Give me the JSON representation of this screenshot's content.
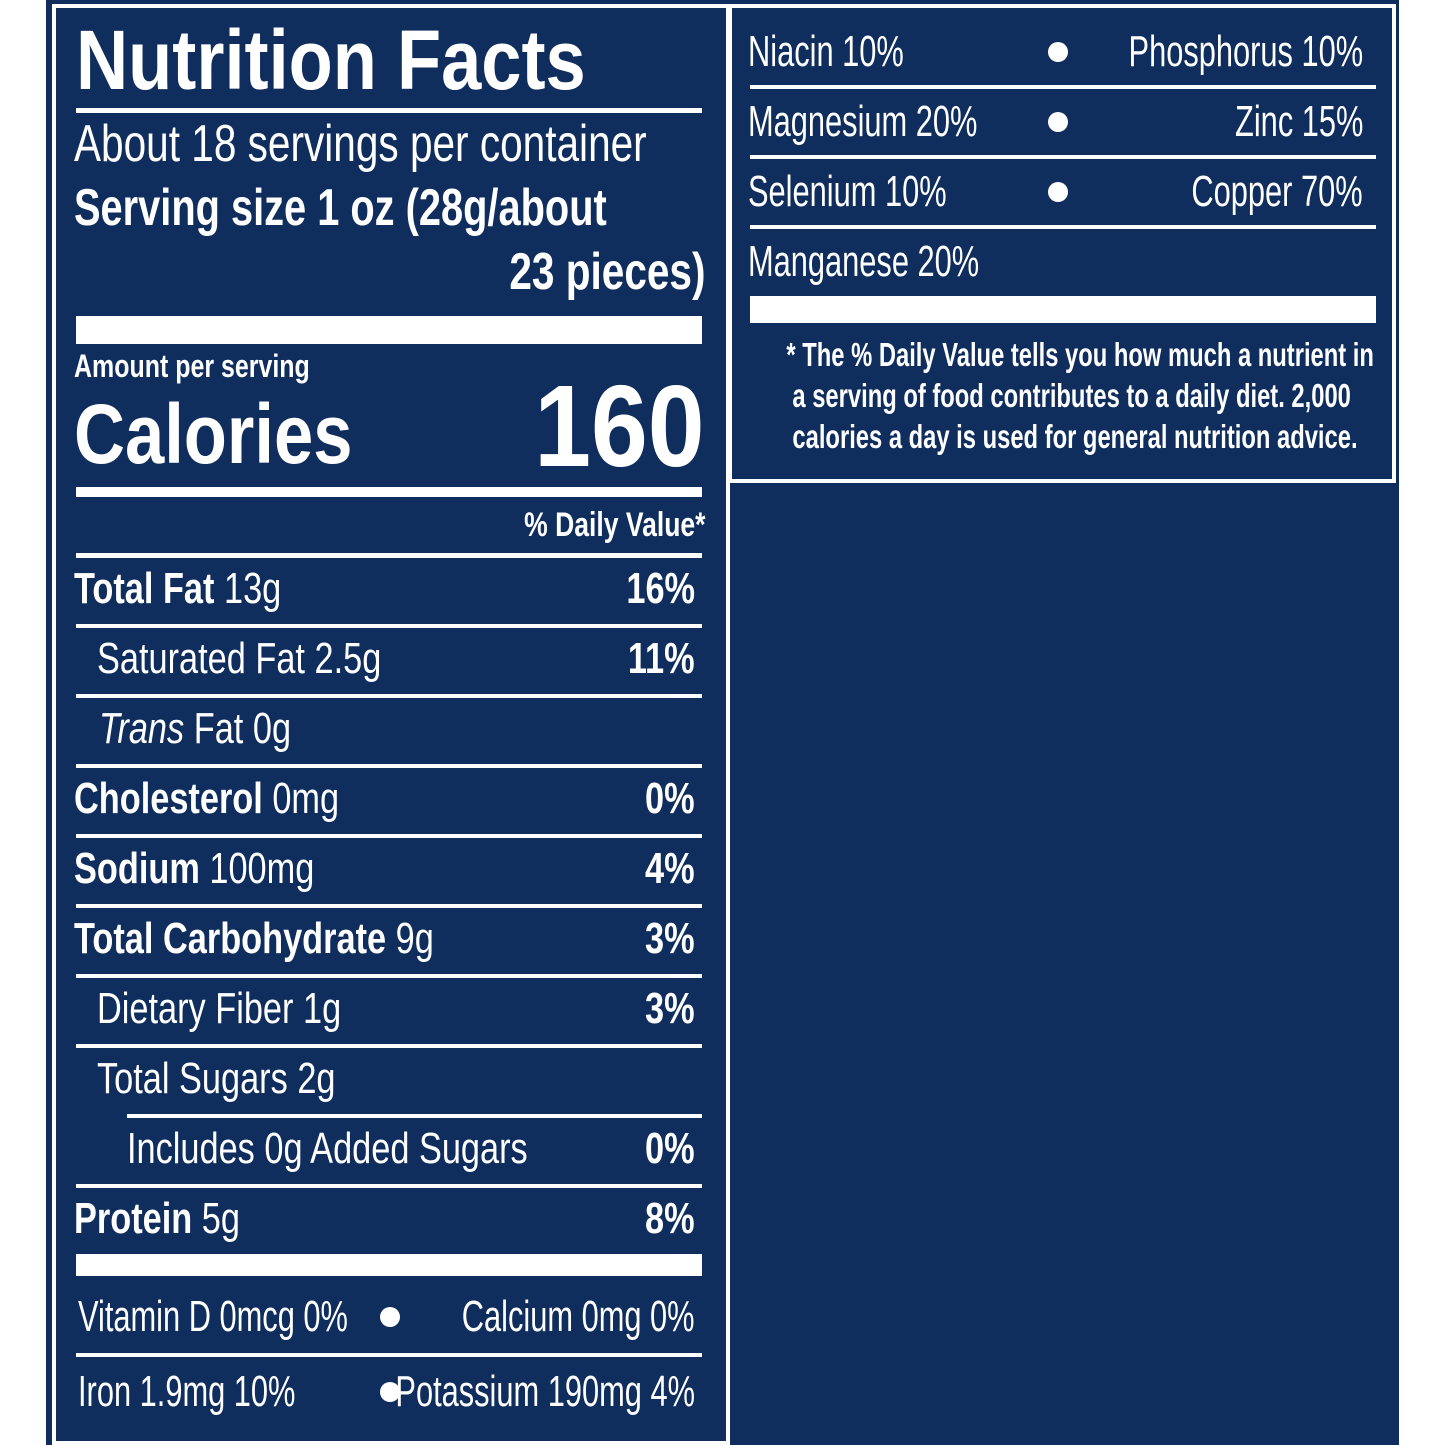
{
  "title": "Nutrition Facts",
  "servings": "About 18 servings per container",
  "serving_size_label": "Serving size",
  "serving_size_line1": "1 oz (28g/about",
  "serving_size_line2": "23 pieces)",
  "amount_per_serving": "Amount per serving",
  "calories_label": "Calories",
  "calories_value": "160",
  "daily_value_header": "% Daily Value*",
  "nutrients": [
    {
      "name": "Total Fat",
      "amount": "13g",
      "dv": "16%"
    },
    {
      "name": "Saturated Fat",
      "amount": "2.5g",
      "dv": "11%"
    },
    {
      "name": "Trans",
      "name_suffix": "Fat",
      "amount": "0g",
      "dv": ""
    },
    {
      "name": "Cholesterol",
      "amount": "0mg",
      "dv": "0%"
    },
    {
      "name": "Sodium",
      "amount": "100mg",
      "dv": "4%"
    },
    {
      "name": "Total Carbohydrate",
      "amount": "9g",
      "dv": "3%"
    },
    {
      "name": "Dietary Fiber",
      "amount": "1g",
      "dv": "3%"
    },
    {
      "name": "Total Sugars",
      "amount": "2g",
      "dv": ""
    },
    {
      "name": "Includes 0g Added Sugars",
      "amount": "",
      "dv": "0%"
    },
    {
      "name": "Protein",
      "amount": "5g",
      "dv": "8%"
    }
  ],
  "vitamins_left": [
    {
      "left": "Vitamin D 0mcg 0%",
      "right": "Calcium 0mg 0%"
    },
    {
      "left": "Iron 1.9mg 10%",
      "right": "Potassium 190mg 4%"
    }
  ],
  "vitamins_right": [
    {
      "left": "Niacin 10%",
      "right": "Phosphorus 10%"
    },
    {
      "left": "Magnesium 20%",
      "right": "Zinc 15%"
    },
    {
      "left": "Selenium 10%",
      "right": "Copper 70%"
    },
    {
      "left": "Manganese 20%",
      "right": ""
    }
  ],
  "footnote": [
    "* The % Daily Value tells you how much a nutrient in",
    "a serving of food contributes to a daily diet. 2,000",
    "calories a day is used for general nutrition advice."
  ],
  "colors": {
    "background": "#0f2d5d",
    "text": "#ffffff"
  }
}
